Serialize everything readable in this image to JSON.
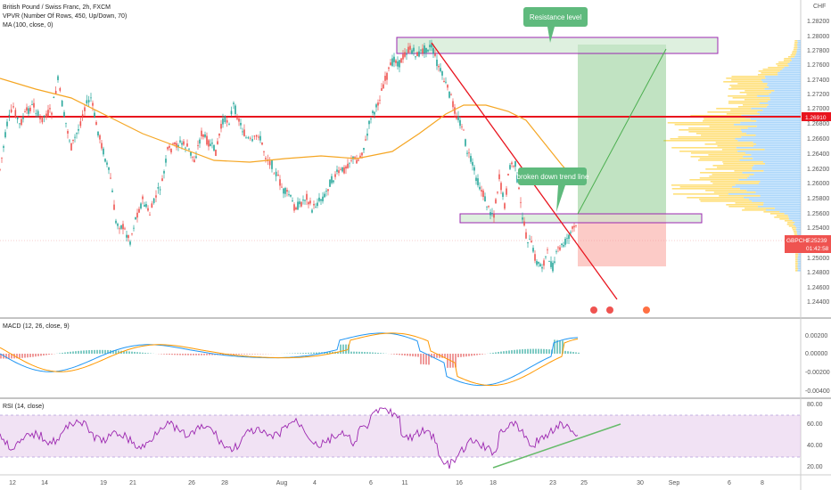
{
  "header": {
    "symbol_line": "British Pound / Swiss Franc, 2h, FXCM",
    "vpvr_line": "VPVR (Number Of Rows, 450, Up/Down, 70)",
    "ma_line": "MA (100, close, 0)"
  },
  "annotations": {
    "resistance": "Resistance level",
    "trendline": "broken down trend line"
  },
  "price_axis": {
    "currency": "CHF",
    "ticks": [
      "1.28200",
      "1.28000",
      "1.27800",
      "1.27600",
      "1.27400",
      "1.27200",
      "1.27000",
      "1.26800",
      "1.26600",
      "1.26400",
      "1.26200",
      "1.26000",
      "1.25800",
      "1.25600",
      "1.25400",
      "1.25000",
      "1.24800",
      "1.24600",
      "1.24400"
    ],
    "red_level": "1.26910",
    "current_symbol": "GBPCHF",
    "current_price": "1.25239",
    "countdown": "01:42:58"
  },
  "macd": {
    "label": "MACD (12, 26, close, 9)",
    "ticks": [
      "0.00200",
      "0.00000",
      "-0.00200",
      "-0.00400"
    ]
  },
  "rsi": {
    "label": "RSI (14, close)",
    "ticks": [
      "80.00",
      "60.00",
      "40.00",
      "20.00"
    ]
  },
  "time_axis": [
    "12",
    "14",
    "19",
    "21",
    "26",
    "28",
    "Aug",
    "4",
    "6",
    "11",
    "16",
    "18",
    "23",
    "25",
    "30",
    "Sep",
    "6",
    "8"
  ],
  "colors": {
    "up": "#26a69a",
    "down": "#ef5350",
    "ma": "#f5a623",
    "red_line": "#e8141e",
    "profit_zone": "#4caf50",
    "loss_zone": "#f44336",
    "note_bg": "#5fba7d",
    "macd_line": "#2196f3",
    "signal_line": "#ff9800",
    "rsi_line": "#9c27b0",
    "rsi_band": "#e1bee7"
  }
}
